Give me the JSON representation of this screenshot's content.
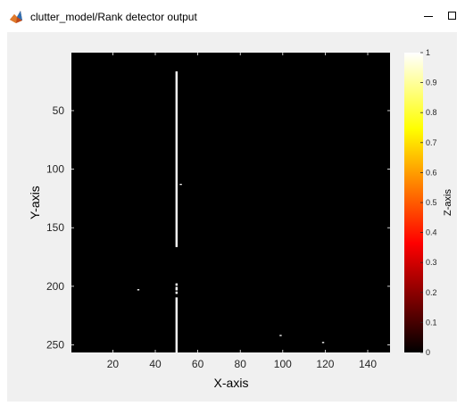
{
  "window": {
    "title": "clutter_model/Rank detector output",
    "app_icon": "matlab-icon",
    "minimize_icon": "minimize-icon",
    "maximize_icon": "maximize-icon"
  },
  "chart_data": {
    "type": "heatmap",
    "title": "",
    "xlabel": "X-axis",
    "ylabel": "Y-axis",
    "zlabel": "Z-axis",
    "xlim": [
      0.5,
      150.5
    ],
    "ylim": [
      0.5,
      256.5
    ],
    "y_direction": "reversed",
    "background_value": 0,
    "xticks": [
      20,
      40,
      60,
      80,
      100,
      120,
      140
    ],
    "yticks": [
      50,
      100,
      150,
      200,
      250
    ],
    "colorbar": {
      "colormap": "hot",
      "clim": [
        0,
        1
      ],
      "ticks": [
        0,
        0.1,
        0.2,
        0.3,
        0.4,
        0.5,
        0.6,
        0.7,
        0.8,
        0.9,
        1
      ],
      "tick_labels": [
        "0",
        "0.1",
        "0.2",
        "0.3",
        "0.4",
        "0.5",
        "0.6",
        "0.7",
        "0.8",
        "0.9",
        "1"
      ]
    },
    "nonzero_pixels": [
      {
        "x": 50,
        "y_start": 17,
        "y_end": 166,
        "value": 1
      },
      {
        "x": 52,
        "y_start": 113,
        "y_end": 113,
        "value": 1
      },
      {
        "x": 50,
        "y_start": 198,
        "y_end": 199,
        "value": 1
      },
      {
        "x": 50,
        "y_start": 201,
        "y_end": 203,
        "value": 1
      },
      {
        "x": 50,
        "y_start": 205,
        "y_end": 206,
        "value": 1
      },
      {
        "x": 50,
        "y_start": 210,
        "y_end": 256,
        "value": 1
      },
      {
        "x": 32,
        "y_start": 203,
        "y_end": 203,
        "value": 1
      },
      {
        "x": 99,
        "y_start": 242,
        "y_end": 242,
        "value": 1
      },
      {
        "x": 119,
        "y_start": 248,
        "y_end": 248,
        "value": 1
      }
    ],
    "grid": false,
    "legend": "none"
  }
}
